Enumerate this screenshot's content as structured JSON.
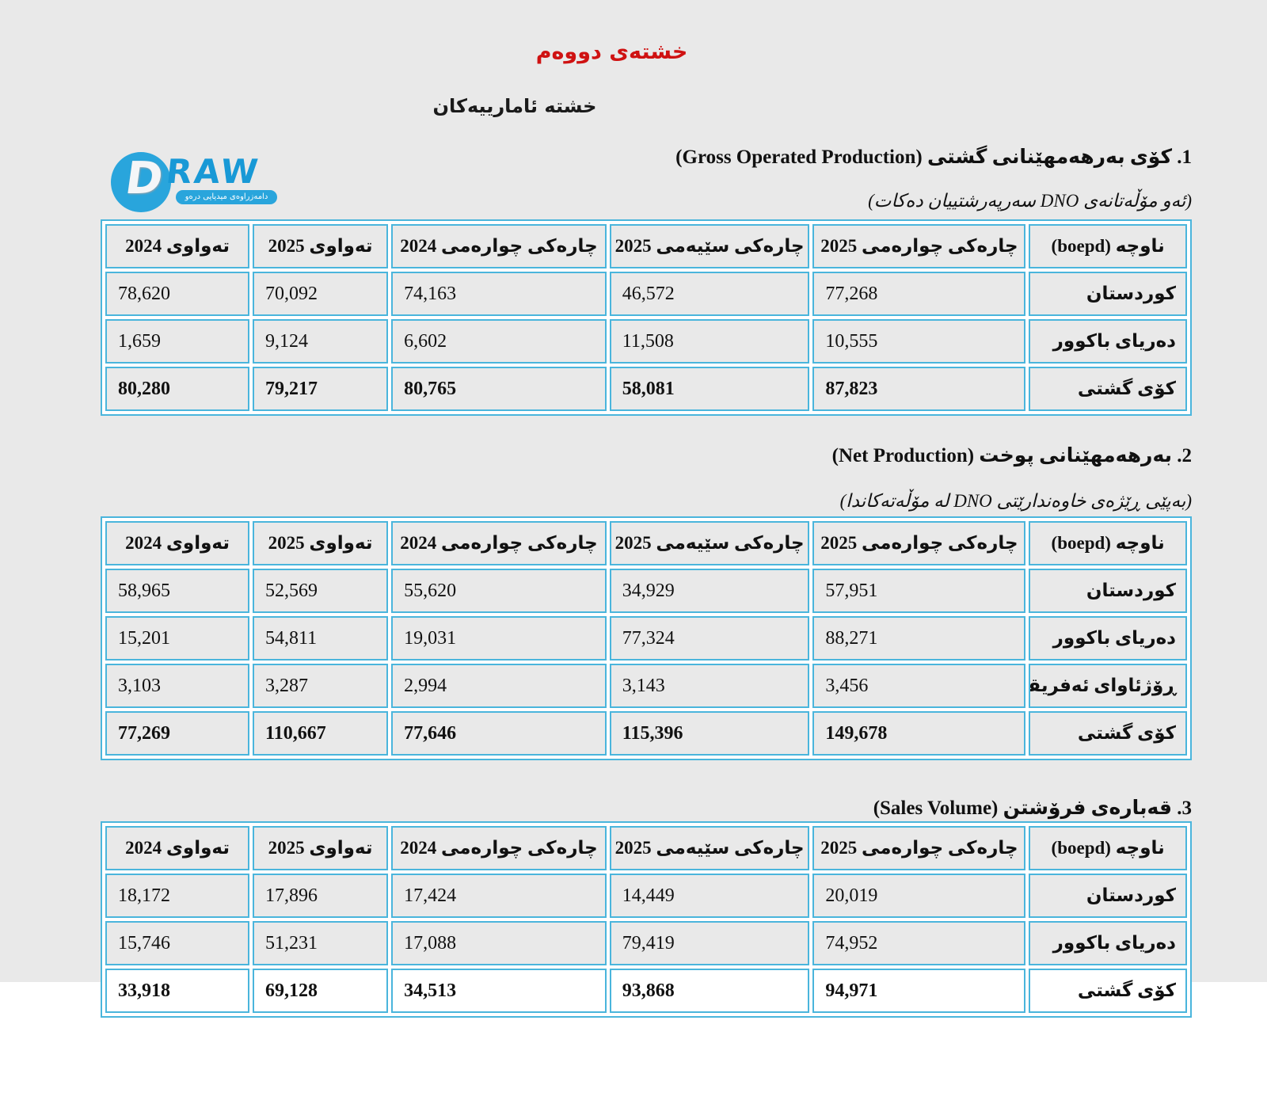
{
  "title": "خشتەی دووەم",
  "subtitle": "خشتە ئامارییەکان",
  "logo": {
    "d_letter": "D",
    "raw_text": "RAW",
    "tagline": "دامەزراوەی میدیایی درەو"
  },
  "colors": {
    "title_red": "#cf1212",
    "table_border_cyan": "#4ab5dc",
    "page_gray": "#e9e9e9",
    "logo_blue": "#29a5dc"
  },
  "sections": [
    {
      "heading": "1. کۆی بەرهەمهێنانی گشتی (Gross Operated Production)",
      "note": "(ئەو مۆڵەتانەی DNO سەرپەرشتییان دەکات)",
      "table": {
        "headers": [
          "ناوچە (boepd)",
          "چارەکی چوارەمی 2025",
          "چارەکی سێیەمی 2025",
          "چارەکی چوارەمی 2024",
          "تەواوی 2025",
          "تەواوی 2024"
        ],
        "rows": [
          {
            "label": "کوردستان",
            "values": [
              "77,268",
              "46,572",
              "74,163",
              "70,092",
              "78,620"
            ],
            "total": false,
            "white_bg": false
          },
          {
            "label": "دەریای باکوور",
            "values": [
              "10,555",
              "11,508",
              "6,602",
              "9,124",
              "1,659"
            ],
            "total": false,
            "white_bg": false
          },
          {
            "label": "کۆی گشتی",
            "values": [
              "87,823",
              "58,081",
              "80,765",
              "79,217",
              "80,280"
            ],
            "total": true,
            "white_bg": false
          }
        ]
      }
    },
    {
      "heading": "2. بەرهەمهێنانی پوخت (Net Production)",
      "note": "(بەپێی ڕێژەی خاوەندارێتی DNO لە مۆڵەتەکاندا)",
      "table": {
        "headers": [
          "ناوچە (boepd)",
          "چارەکی چوارەمی 2025",
          "چارەکی سێیەمی 2025",
          "چارەکی چوارەمی 2024",
          "تەواوی 2025",
          "تەواوی 2024"
        ],
        "rows": [
          {
            "label": "کوردستان",
            "values": [
              "57,951",
              "34,929",
              "55,620",
              "52,569",
              "58,965"
            ],
            "total": false,
            "white_bg": false
          },
          {
            "label": "دەریای باکوور",
            "values": [
              "88,271",
              "77,324",
              "19,031",
              "54,811",
              "15,201"
            ],
            "total": false,
            "white_bg": false
          },
          {
            "label": "ڕۆژئاوای ئەفریقا",
            "values": [
              "3,456",
              "3,143",
              "2,994",
              "3,287",
              "3,103"
            ],
            "total": false,
            "white_bg": false
          },
          {
            "label": "کۆی گشتی",
            "values": [
              "149,678",
              "115,396",
              "77,646",
              "110,667",
              "77,269"
            ],
            "total": true,
            "white_bg": false
          }
        ]
      }
    },
    {
      "heading": "3. قەبارەی فرۆشتن (Sales Volume)",
      "note": "",
      "table": {
        "headers": [
          "ناوچە (boepd)",
          "چارەکی چوارەمی 2025",
          "چارەکی سێیەمی 2025",
          "چارەکی چوارەمی 2024",
          "تەواوی 2025",
          "تەواوی 2024"
        ],
        "rows": [
          {
            "label": "کوردستان",
            "values": [
              "20,019",
              "14,449",
              "17,424",
              "17,896",
              "18,172"
            ],
            "total": false,
            "white_bg": false
          },
          {
            "label": "دەریای باکوور",
            "values": [
              "74,952",
              "79,419",
              "17,088",
              "51,231",
              "15,746"
            ],
            "total": false,
            "white_bg": false
          },
          {
            "label": "کۆی گشتی",
            "values": [
              "94,971",
              "93,868",
              "34,513",
              "69,128",
              "33,918"
            ],
            "total": true,
            "white_bg": true
          }
        ]
      }
    }
  ]
}
